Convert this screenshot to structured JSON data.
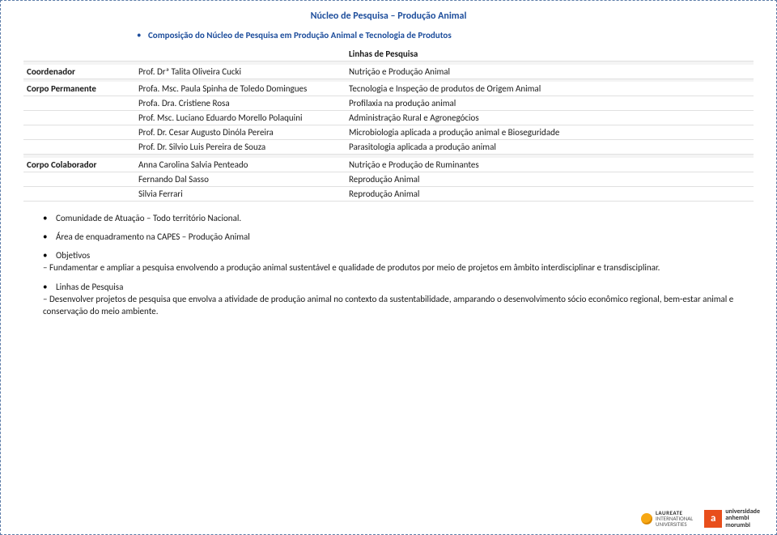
{
  "title": "Núcleo de Pesquisa – Produção Animal",
  "subtitle": "Composição do Núcleo de Pesquisa em Produção Animal e Tecnologia de Produtos",
  "table": {
    "linhas_header": "Linhas de Pesquisa",
    "groups": [
      {
        "label": "Coordenador",
        "rows": [
          {
            "name": "Prof. Drª Talita Oliveira Cucki",
            "line": "Nutrição e Produção Animal"
          }
        ]
      },
      {
        "label": "Corpo Permanente",
        "rows": [
          {
            "name": "Profa. Msc. Paula Spinha de Toledo Domingues",
            "line": "Tecnologia e Inspeção de produtos de Origem Animal"
          },
          {
            "name": "Profa. Dra. Cristiene Rosa",
            "line": "Profilaxia na produção animal"
          },
          {
            "name": "Prof. Msc. Luciano Eduardo Morello Polaquini",
            "line": "Administração Rural e Agronegócios"
          },
          {
            "name": "Prof. Dr. Cesar Augusto Dinóla Pereira",
            "line": "Microbiologia aplicada a produção animal e Bioseguridade"
          },
          {
            "name": "Prof. Dr. Silvio Luis  Pereira de Souza",
            "line": "Parasitologia aplicada a produção animal"
          }
        ]
      },
      {
        "label": "Corpo Colaborador",
        "rows": [
          {
            "name": "Anna Carolina Salvia Penteado",
            "line": "Nutrição e Produção de Ruminantes"
          },
          {
            "name": "Fernando Dal Sasso",
            "line": "Reprodução Animal"
          },
          {
            "name": "Silvia Ferrari",
            "line": "Reprodução Animal"
          }
        ]
      }
    ]
  },
  "sections": {
    "comunidade": {
      "label": "Comunidade de Atuação – ",
      "text": "Todo território Nacional."
    },
    "area": {
      "label": "Área de enquadramento na CAPES – ",
      "text": "Produção Animal"
    },
    "objetivos": {
      "label": "Objetivos",
      "text": "– Fundamentar e ampliar a pesquisa envolvendo a produção animal sustentável e qualidade de produtos por meio de projetos em âmbito interdisciplinar e transdisciplinar."
    },
    "linhas": {
      "label": "Linhas de Pesquisa",
      "text": "– Desenvolver projetos de pesquisa que envolva a atividade de produção animal no contexto da sustentabilidade, amparando o desenvolvimento sócio  econômico regional, bem-estar animal e conservação do meio ambiente."
    }
  },
  "footer": {
    "laureate": {
      "l1": "LAUREATE",
      "l2": "INTERNATIONAL",
      "l3": "UNIVERSITIES"
    },
    "anhembi": {
      "mark": "a",
      "l1": "universidade",
      "l2": "anhembi",
      "l3": "morumbi"
    }
  }
}
